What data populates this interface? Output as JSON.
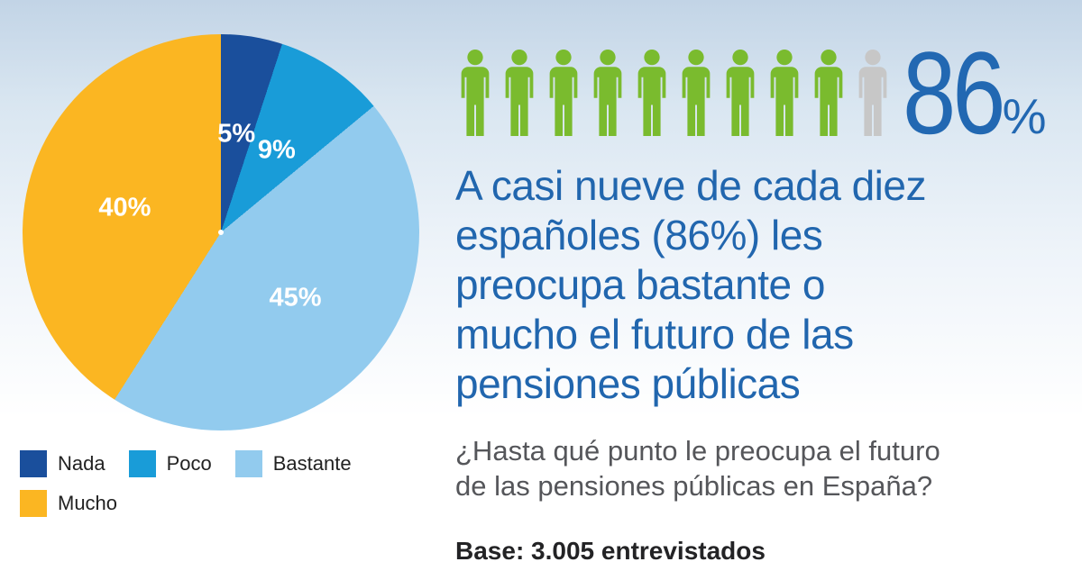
{
  "chart_data": [
    {
      "type": "pie",
      "labels": [
        "Nada",
        "Poco",
        "Bastante",
        "Mucho"
      ],
      "values": [
        5,
        9,
        45,
        40
      ],
      "colors": [
        "#1a4f9c",
        "#199cd8",
        "#92cbee",
        "#fbb622"
      ],
      "slice_labels": [
        "5%",
        "9%",
        "45%",
        "40%"
      ],
      "slice_label_color": "#ffffff",
      "start_angle_deg": 0,
      "direction": "clockwise",
      "legend_position": "bottom-left"
    },
    {
      "type": "pictograph",
      "unit": "person-icon",
      "total_icons": 10,
      "highlighted_icons": 9,
      "highlight_color": "#7abb2e",
      "muted_color": "#c7c7c7",
      "value": "86%"
    }
  ],
  "stat": {
    "number": "86",
    "percent_sign": "%"
  },
  "headline": "A casi nueve de cada diez\nespañoles (86%) les\npreocupa bastante o\nmucho el futuro de las\npensiones públicas",
  "question": "¿Hasta qué punto le preocupa el futuro\nde las pensiones públicas en España?",
  "base_note": "Base: 3.005 entrevistados",
  "colors": {
    "background_top": "#c2d4e6",
    "background_bottom": "#ffffff",
    "headline_blue": "#2166ae",
    "stat_blue": "#2268b2",
    "question_gray": "#55565a",
    "base_dark": "#232325",
    "legend_text": "#222222"
  }
}
